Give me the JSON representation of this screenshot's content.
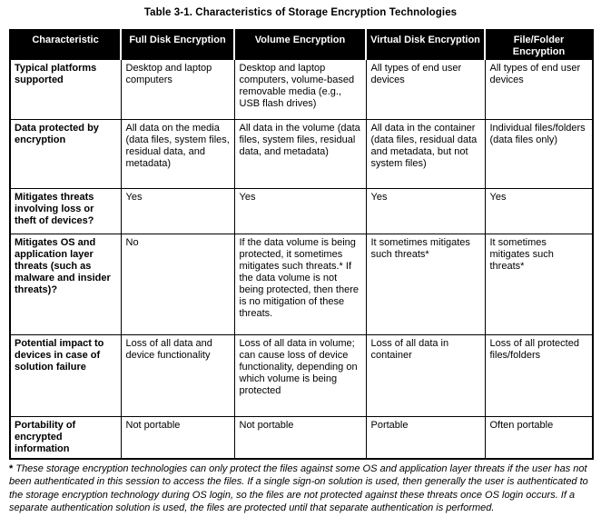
{
  "title": "Table 3-1.  Characteristics of Storage Encryption Technologies",
  "colors": {
    "header_bg": "#000000",
    "header_text": "#ffffff",
    "border": "#000000",
    "page_bg": "#ffffff"
  },
  "table": {
    "headers": [
      "Characteristic",
      "Full Disk Encryption",
      "Volume Encryption",
      "Virtual Disk Encryption",
      "File/Folder Encryption"
    ],
    "rows": [
      {
        "characteristic": "Typical platforms supported",
        "cells": [
          "Desktop and laptop computers",
          "Desktop and laptop computers, volume-based removable media (e.g., USB flash drives)",
          "All types of end user devices",
          "All types of end user devices"
        ]
      },
      {
        "characteristic": "Data protected by encryption",
        "cells": [
          "All data on the media (data files, system files, residual data, and metadata)",
          "All data in the volume (data files, system files, residual data, and metadata)",
          "All data in the container (data files, residual data and metadata, but not system files)",
          "Individual files/folders (data files only)"
        ]
      },
      {
        "characteristic": "Mitigates threats involving loss or theft of devices?",
        "cells": [
          "Yes",
          "Yes",
          "Yes",
          "Yes"
        ]
      },
      {
        "characteristic": "Mitigates OS and application layer threats (such as malware and insider threats)?",
        "cells": [
          "No",
          "If the data volume is being protected, it sometimes mitigates such threats.* If the data volume is not being protected, then there is no mitigation of these threats.",
          "It sometimes mitigates such threats*",
          "It sometimes mitigates such threats*"
        ]
      },
      {
        "characteristic": "Potential impact to devices in case of solution failure",
        "cells": [
          "Loss of all data and device functionality",
          "Loss of all data in volume; can cause loss of device functionality, depending on which volume is being protected",
          "Loss of all data in container",
          "Loss of all protected files/folders"
        ]
      },
      {
        "characteristic": "Portability of encrypted information",
        "cells": [
          "Not portable",
          "Not portable",
          "Portable",
          "Often portable"
        ]
      }
    ]
  },
  "footnote": {
    "marker": "*",
    "text": "These storage encryption technologies can only protect the files against some OS and application layer threats if the user has not been authenticated in this session to access the files.  If a single sign-on solution is used, then generally the user is authenticated to the storage encryption technology during OS login, so the files are not protected against these threats once OS login occurs.  If a separate authentication solution is used, the files are protected until that separate authentication is performed."
  }
}
